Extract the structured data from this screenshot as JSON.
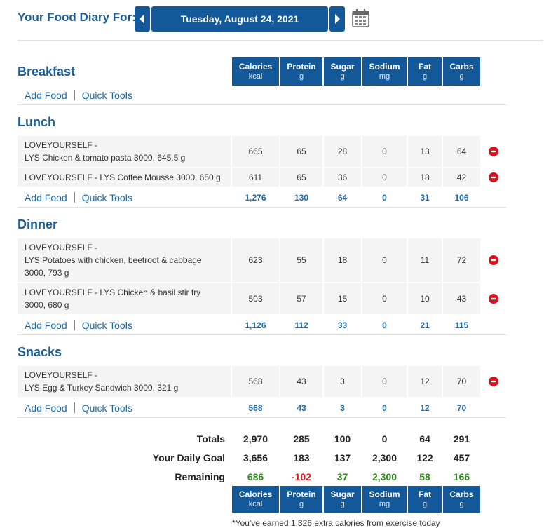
{
  "header": {
    "label": "Your Food Diary For:",
    "date": "Tuesday, August 24, 2021"
  },
  "actions": {
    "add_food": "Add Food",
    "quick_tools": "Quick Tools"
  },
  "columns": [
    {
      "name": "Calories",
      "unit": "kcal"
    },
    {
      "name": "Protein",
      "unit": "g"
    },
    {
      "name": "Sugar",
      "unit": "g"
    },
    {
      "name": "Sodium",
      "unit": "mg"
    },
    {
      "name": "Fat",
      "unit": "g"
    },
    {
      "name": "Carbs",
      "unit": "g"
    }
  ],
  "meals": [
    {
      "name": "Breakfast",
      "entries": []
    },
    {
      "name": "Lunch",
      "entries": [
        {
          "lines": [
            "LOVEYOURSELF -",
            "LYS Chicken & tomato pasta 3000, 645.5 g"
          ],
          "values": [
            "665",
            "65",
            "28",
            "0",
            "13",
            "64"
          ]
        },
        {
          "lines": [
            "LOVEYOURSELF - LYS Coffee Mousse 3000, 650 g"
          ],
          "values": [
            "611",
            "65",
            "36",
            "0",
            "18",
            "42"
          ]
        }
      ],
      "totals": [
        "1,276",
        "130",
        "64",
        "0",
        "31",
        "106"
      ]
    },
    {
      "name": "Dinner",
      "entries": [
        {
          "lines": [
            "LOVEYOURSELF -",
            "LYS Potatoes with chicken, beetroot & cabbage 3000, 793 g"
          ],
          "values": [
            "623",
            "55",
            "18",
            "0",
            "11",
            "72"
          ]
        },
        {
          "lines": [
            "LOVEYOURSELF - LYS Chicken & basil stir fry 3000, 680 g"
          ],
          "values": [
            "503",
            "57",
            "15",
            "0",
            "10",
            "43"
          ]
        }
      ],
      "totals": [
        "1,126",
        "112",
        "33",
        "0",
        "21",
        "115"
      ]
    },
    {
      "name": "Snacks",
      "entries": [
        {
          "lines": [
            "LOVEYOURSELF -",
            "LYS Egg & Turkey Sandwich 3000, 321 g"
          ],
          "values": [
            "568",
            "43",
            "3",
            "0",
            "12",
            "70"
          ]
        }
      ],
      "totals": [
        "568",
        "43",
        "3",
        "0",
        "12",
        "70"
      ]
    }
  ],
  "summary": [
    {
      "label": "Totals",
      "values": [
        "2,970",
        "285",
        "100",
        "0",
        "64",
        "291"
      ]
    },
    {
      "label": "Your Daily Goal",
      "values": [
        "3,656",
        "183",
        "137",
        "2,300",
        "122",
        "457"
      ]
    },
    {
      "label": "Remaining",
      "values": [
        "686",
        "-102",
        "37",
        "2,300",
        "58",
        "166"
      ],
      "colors": [
        "#2f8a1c",
        "#e3191c",
        "#2f8a1c",
        "#2f8a1c",
        "#2f8a1c",
        "#2f8a1c"
      ]
    }
  ],
  "footnote": "*You've earned 1,326 extra calories from exercise today"
}
